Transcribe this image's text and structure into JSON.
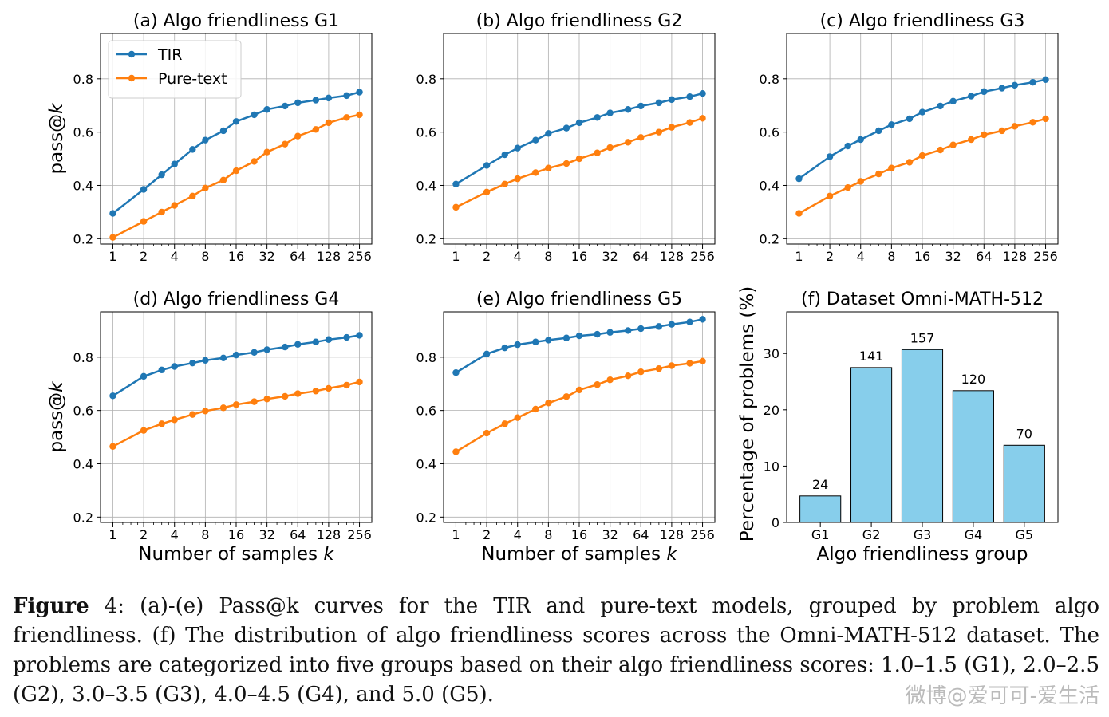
{
  "colors": {
    "tir": "#1f77b4",
    "pure": "#ff7f0e",
    "bar": "#87ceeb",
    "grid": "#b0b0b0"
  },
  "chart_data": [
    {
      "type": "line",
      "panel": "a",
      "title": "(a) Algo friendliness G1",
      "xlabel": "",
      "ylabel": "pass@k",
      "xscale": "log2",
      "x": [
        1,
        2,
        3,
        4,
        6,
        8,
        12,
        16,
        24,
        32,
        48,
        64,
        96,
        128,
        192,
        256
      ],
      "xticks": [
        "1",
        "2",
        "4",
        "8",
        "16",
        "32",
        "64",
        "128",
        "256"
      ],
      "ylim": [
        0.18,
        0.97
      ],
      "yticks": [
        "0.2",
        "0.4",
        "0.6",
        "0.8"
      ],
      "grid": true,
      "legend": "top-left",
      "series": [
        {
          "name": "TIR",
          "values": [
            0.295,
            0.385,
            0.44,
            0.48,
            0.535,
            0.57,
            0.605,
            0.64,
            0.665,
            0.685,
            0.698,
            0.71,
            0.72,
            0.728,
            0.737,
            0.75
          ]
        },
        {
          "name": "Pure-text",
          "values": [
            0.205,
            0.265,
            0.3,
            0.325,
            0.36,
            0.39,
            0.42,
            0.455,
            0.49,
            0.525,
            0.555,
            0.585,
            0.61,
            0.635,
            0.655,
            0.665
          ]
        }
      ]
    },
    {
      "type": "line",
      "panel": "b",
      "title": "(b) Algo friendliness G2",
      "xlabel": "",
      "ylabel": "",
      "xscale": "log2",
      "x": [
        1,
        2,
        3,
        4,
        6,
        8,
        12,
        16,
        24,
        32,
        48,
        64,
        96,
        128,
        192,
        256
      ],
      "xticks": [
        "1",
        "2",
        "4",
        "8",
        "16",
        "32",
        "64",
        "128",
        "256"
      ],
      "ylim": [
        0.18,
        0.97
      ],
      "yticks": [
        "0.2",
        "0.4",
        "0.6",
        "0.8"
      ],
      "grid": true,
      "series": [
        {
          "name": "TIR",
          "values": [
            0.405,
            0.475,
            0.515,
            0.54,
            0.57,
            0.595,
            0.615,
            0.635,
            0.655,
            0.672,
            0.685,
            0.698,
            0.71,
            0.722,
            0.733,
            0.745
          ]
        },
        {
          "name": "Pure-text",
          "values": [
            0.318,
            0.375,
            0.405,
            0.425,
            0.448,
            0.465,
            0.482,
            0.5,
            0.522,
            0.542,
            0.562,
            0.58,
            0.6,
            0.618,
            0.636,
            0.652
          ]
        }
      ]
    },
    {
      "type": "line",
      "panel": "c",
      "title": "(c) Algo friendliness G3",
      "xlabel": "",
      "ylabel": "",
      "xscale": "log2",
      "x": [
        1,
        2,
        3,
        4,
        6,
        8,
        12,
        16,
        24,
        32,
        48,
        64,
        96,
        128,
        192,
        256
      ],
      "xticks": [
        "1",
        "2",
        "4",
        "8",
        "16",
        "32",
        "64",
        "128",
        "256"
      ],
      "ylim": [
        0.18,
        0.97
      ],
      "yticks": [
        "0.2",
        "0.4",
        "0.6",
        "0.8"
      ],
      "grid": true,
      "series": [
        {
          "name": "TIR",
          "values": [
            0.425,
            0.508,
            0.548,
            0.572,
            0.605,
            0.628,
            0.65,
            0.675,
            0.698,
            0.716,
            0.735,
            0.752,
            0.765,
            0.776,
            0.787,
            0.797
          ]
        },
        {
          "name": "Pure-text",
          "values": [
            0.295,
            0.36,
            0.392,
            0.415,
            0.443,
            0.465,
            0.487,
            0.512,
            0.533,
            0.552,
            0.572,
            0.59,
            0.605,
            0.622,
            0.637,
            0.65
          ]
        }
      ]
    },
    {
      "type": "line",
      "panel": "d",
      "title": "(d) Algo friendliness G4",
      "xlabel": "Number of samples k",
      "ylabel": "pass@k",
      "xscale": "log2",
      "x": [
        1,
        2,
        3,
        4,
        6,
        8,
        12,
        16,
        24,
        32,
        48,
        64,
        96,
        128,
        192,
        256
      ],
      "xticks": [
        "1",
        "2",
        "4",
        "8",
        "16",
        "32",
        "64",
        "128",
        "256"
      ],
      "ylim": [
        0.18,
        0.97
      ],
      "yticks": [
        "0.2",
        "0.4",
        "0.6",
        "0.8"
      ],
      "grid": true,
      "series": [
        {
          "name": "TIR",
          "values": [
            0.655,
            0.728,
            0.752,
            0.765,
            0.778,
            0.788,
            0.797,
            0.808,
            0.818,
            0.828,
            0.838,
            0.848,
            0.857,
            0.866,
            0.874,
            0.882
          ]
        },
        {
          "name": "Pure-text",
          "values": [
            0.465,
            0.525,
            0.55,
            0.565,
            0.585,
            0.598,
            0.61,
            0.622,
            0.633,
            0.643,
            0.653,
            0.663,
            0.673,
            0.683,
            0.695,
            0.707
          ]
        }
      ]
    },
    {
      "type": "line",
      "panel": "e",
      "title": "(e) Algo friendliness G5",
      "xlabel": "Number of samples k",
      "ylabel": "",
      "xscale": "log2",
      "x": [
        1,
        2,
        3,
        4,
        6,
        8,
        12,
        16,
        24,
        32,
        48,
        64,
        96,
        128,
        192,
        256
      ],
      "xticks": [
        "1",
        "2",
        "4",
        "8",
        "16",
        "32",
        "64",
        "128",
        "256"
      ],
      "ylim": [
        0.18,
        0.97
      ],
      "yticks": [
        "0.2",
        "0.4",
        "0.6",
        "0.8"
      ],
      "grid": true,
      "series": [
        {
          "name": "TIR",
          "values": [
            0.742,
            0.812,
            0.835,
            0.847,
            0.857,
            0.864,
            0.872,
            0.88,
            0.886,
            0.893,
            0.9,
            0.907,
            0.915,
            0.923,
            0.932,
            0.942
          ]
        },
        {
          "name": "Pure-text",
          "values": [
            0.445,
            0.515,
            0.55,
            0.573,
            0.605,
            0.628,
            0.652,
            0.677,
            0.697,
            0.715,
            0.73,
            0.745,
            0.757,
            0.768,
            0.777,
            0.785
          ]
        }
      ]
    },
    {
      "type": "bar",
      "panel": "f",
      "title": "(f) Dataset Omni-MATH-512",
      "xlabel": "Algo friendliness group",
      "ylabel": "Percentage of problems (%)",
      "categories": [
        "G1",
        "G2",
        "G3",
        "G4",
        "G5"
      ],
      "values": [
        4.7,
        27.5,
        30.7,
        23.4,
        13.7
      ],
      "labels": [
        "24",
        "141",
        "157",
        "120",
        "70"
      ],
      "ylim": [
        0,
        37.4
      ],
      "yticks": [
        "0",
        "10",
        "20",
        "30"
      ],
      "grid": false
    }
  ],
  "legend": {
    "tir": "TIR",
    "pure": "Pure-text"
  },
  "caption": {
    "label": "Figure",
    "number": "4:",
    "text": "(a)-(e) Pass@k curves for the TIR and pure-text models, grouped by problem algo friendliness. (f) The distribution of algo friendliness scores across the Omni-MATH-512 dataset. The problems are categorized into five groups based on their algo friendliness scores: 1.0–1.5 (G1), 2.0–2.5 (G2), 3.0–3.5 (G3), 4.0–4.5 (G4), and 5.0 (G5)."
  },
  "watermark": "微博@爱可可-爱生活"
}
